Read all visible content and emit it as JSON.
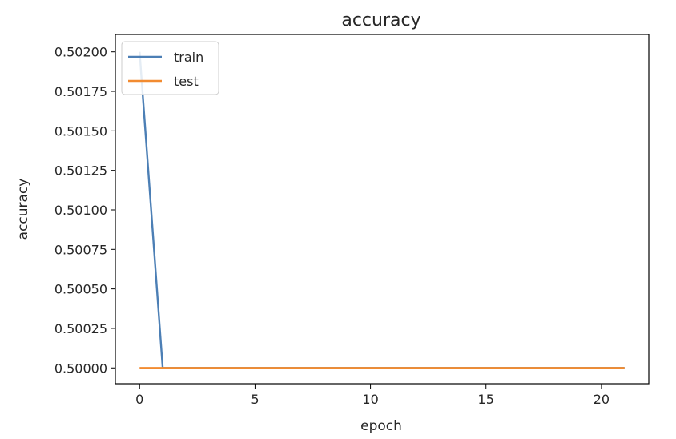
{
  "chart_data": {
    "type": "line",
    "title": "accuracy",
    "xlabel": "epoch",
    "ylabel": "accuracy",
    "xlim": [
      -1.05,
      22.05
    ],
    "ylim": [
      0.4999,
      0.50211
    ],
    "xticks": [
      0,
      5,
      10,
      15,
      20
    ],
    "xtick_labels": [
      "0",
      "5",
      "10",
      "15",
      "20"
    ],
    "yticks": [
      0.5,
      0.50025,
      0.5005,
      0.50075,
      0.501,
      0.50125,
      0.5015,
      0.50175,
      0.502
    ],
    "ytick_labels": [
      "0.50000",
      "0.50025",
      "0.50050",
      "0.50075",
      "0.50100",
      "0.50125",
      "0.50150",
      "0.50175",
      "0.50200"
    ],
    "grid": false,
    "legend_position": "top-left",
    "series": [
      {
        "name": "train",
        "color": "#4c7fb5",
        "x": [
          0,
          1,
          2,
          3,
          4,
          5,
          6,
          7,
          8,
          9,
          10,
          11,
          12,
          13,
          14,
          15,
          16,
          17,
          18,
          19,
          20,
          21
        ],
        "values": [
          0.502,
          0.5,
          0.5,
          0.5,
          0.5,
          0.5,
          0.5,
          0.5,
          0.5,
          0.5,
          0.5,
          0.5,
          0.5,
          0.5,
          0.5,
          0.5,
          0.5,
          0.5,
          0.5,
          0.5,
          0.5,
          0.5
        ]
      },
      {
        "name": "test",
        "color": "#f28b30",
        "x": [
          0,
          1,
          2,
          3,
          4,
          5,
          6,
          7,
          8,
          9,
          10,
          11,
          12,
          13,
          14,
          15,
          16,
          17,
          18,
          19,
          20,
          21
        ],
        "values": [
          0.5,
          0.5,
          0.5,
          0.5,
          0.5,
          0.5,
          0.5,
          0.5,
          0.5,
          0.5,
          0.5,
          0.5,
          0.5,
          0.5,
          0.5,
          0.5,
          0.5,
          0.5,
          0.5,
          0.5,
          0.5,
          0.5
        ]
      }
    ]
  }
}
